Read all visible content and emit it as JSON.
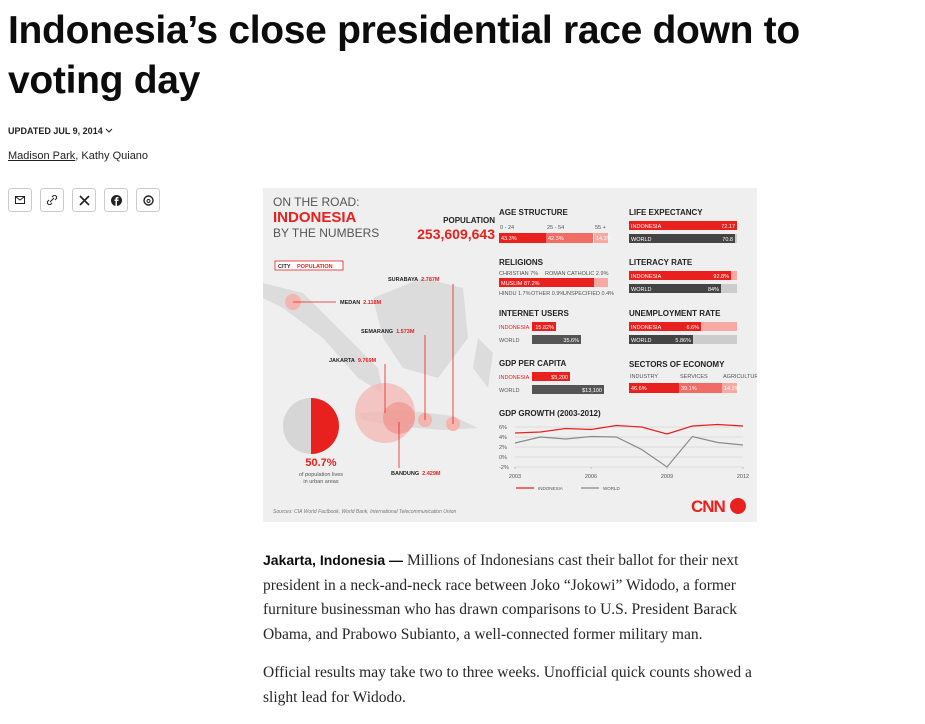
{
  "article": {
    "title": "Indonesia’s close presidential race down to voting day",
    "updated": "UPDATED JUL 9, 2014",
    "authors": [
      "Madison Park",
      "Kathy Quiano"
    ],
    "author_separator": ",",
    "paragraphs": [
      {
        "lead": "Jakarta, Indonesia —",
        "text": "Millions of Indonesians cast their ballot for their next president in a neck-and-neck race between Joko “Jokowi” Widodo, a former furniture businessman who has drawn comparisons to U.S. President Barack Obama, and Prabowo Subianto, a well-connected former military man."
      },
      {
        "text": "Official results may take two to three weeks. Unofficial quick counts showed a slight lead for Widodo."
      }
    ]
  },
  "infographic": {
    "kicker": "ON THE ROAD:",
    "title": "INDONESIA",
    "subtitle": "BY THE NUMBERS",
    "population_label": "POPULATION",
    "population": "253,609,643",
    "city_legend": [
      "CITY",
      "POPULATION"
    ],
    "cities": [
      {
        "name": "SURABAYA",
        "population": "2.787M"
      },
      {
        "name": "MEDAN",
        "population": "2.118M"
      },
      {
        "name": "SEMARANG",
        "population": "1.573M"
      },
      {
        "name": "JAKARTA",
        "population": "9.769M"
      },
      {
        "name": "BANDUNG",
        "population": "2.429M"
      }
    ],
    "urban": {
      "value": "50.7%",
      "text": [
        "of population lives",
        "in urban areas"
      ]
    },
    "age_structure": {
      "title": "AGE STRUCTURE",
      "labels": [
        "0 - 24",
        "25 - 54",
        "55 +"
      ],
      "values": [
        "43.3%",
        "42.3%",
        "14.3%"
      ]
    },
    "religions": {
      "title": "RELIGIONS",
      "top": [
        "CHRISTIAN 7%",
        "ROMAN CATHOLIC 2.9%"
      ],
      "main": "MUSLIM 87.2%",
      "bottom": [
        "HINDU 1.7%",
        "OTHER 0.9%",
        "UNSPECIFIED 0.4%"
      ]
    },
    "internet_users": {
      "title": "INTERNET USERS",
      "rows": [
        [
          "INDONESIA",
          "15.82%"
        ],
        [
          "WORLD",
          "35.6%"
        ]
      ]
    },
    "gdp_per_capita": {
      "title": "GDP PER CAPITA",
      "rows": [
        [
          "INDONESIA",
          "$5,200"
        ],
        [
          "WORLD",
          "$13,100"
        ]
      ]
    },
    "life_expectancy": {
      "title": "LIFE EXPECTANCY",
      "rows": [
        [
          "INDONESIA",
          "72.17"
        ],
        [
          "WORLD",
          "70.8"
        ]
      ]
    },
    "literacy_rate": {
      "title": "LITERACY RATE",
      "rows": [
        [
          "INDONESIA",
          "92.8%"
        ],
        [
          "WORLD",
          "84%"
        ]
      ]
    },
    "unemployment_rate": {
      "title": "UNEMPLOYMENT RATE",
      "rows": [
        [
          "INDONESIA",
          "6.6%"
        ],
        [
          "WORLD",
          "5.86%"
        ]
      ]
    },
    "sectors": {
      "title": "SECTORS OF ECONOMY",
      "labels": [
        "INDUSTRY",
        "SERVICES",
        "AGRICULTURE"
      ],
      "values": [
        "46.6%",
        "39.1%",
        "14.3%"
      ]
    },
    "gdp_growth": {
      "type": "line",
      "title": "GDP GROWTH (2003-2012)",
      "x": [
        2003,
        2004,
        2005,
        2006,
        2007,
        2008,
        2009,
        2010,
        2011,
        2012
      ],
      "xticks": [
        2003,
        2006,
        2009,
        2012
      ],
      "xlim": [
        2003,
        2012
      ],
      "ylim": [
        -2,
        6
      ],
      "yticks": [
        {
          "value": 6,
          "label": "6%"
        },
        {
          "value": 4,
          "label": "4%"
        },
        {
          "value": 2,
          "label": "2%"
        },
        {
          "value": 0,
          "label": "0%"
        },
        {
          "value": -2,
          "label": "-2%"
        }
      ],
      "grid": true,
      "series": [
        {
          "name": "INDONESIA",
          "color": "#e8201e",
          "values": [
            4.8,
            5.0,
            5.7,
            5.5,
            6.3,
            6.0,
            4.6,
            6.2,
            6.5,
            6.2
          ]
        },
        {
          "name": "WORLD",
          "color": "#8a8a8a",
          "values": [
            2.8,
            4.0,
            3.6,
            4.1,
            4.0,
            1.5,
            -2.0,
            4.1,
            2.9,
            2.4
          ]
        }
      ]
    },
    "sources": "Sources: CIA World Factbook, World Bank, International Telecommunication Union",
    "logo": "CNN"
  }
}
